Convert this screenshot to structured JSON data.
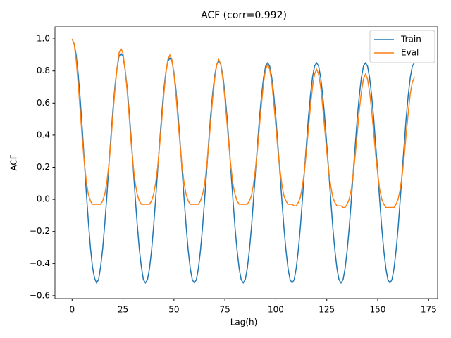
{
  "chart_data": {
    "type": "line",
    "title": "ACF  (corr=0.992)",
    "x_label": "Lag(h)",
    "y_label": "ACF",
    "x": [
      0,
      1,
      2,
      3,
      4,
      5,
      6,
      7,
      8,
      9,
      10,
      11,
      12,
      13,
      14,
      15,
      16,
      17,
      18,
      19,
      20,
      21,
      22,
      23,
      24,
      25,
      26,
      27,
      28,
      29,
      30,
      31,
      32,
      33,
      34,
      35,
      36,
      37,
      38,
      39,
      40,
      41,
      42,
      43,
      44,
      45,
      46,
      47,
      48,
      49,
      50,
      51,
      52,
      53,
      54,
      55,
      56,
      57,
      58,
      59,
      60,
      61,
      62,
      63,
      64,
      65,
      66,
      67,
      68,
      69,
      70,
      71,
      72,
      73,
      74,
      75,
      76,
      77,
      78,
      79,
      80,
      81,
      82,
      83,
      84,
      85,
      86,
      87,
      88,
      89,
      90,
      91,
      92,
      93,
      94,
      95,
      96,
      97,
      98,
      99,
      100,
      101,
      102,
      103,
      104,
      105,
      106,
      107,
      108,
      109,
      110,
      111,
      112,
      113,
      114,
      115,
      116,
      117,
      118,
      119,
      120,
      121,
      122,
      123,
      124,
      125,
      126,
      127,
      128,
      129,
      130,
      131,
      132,
      133,
      134,
      135,
      136,
      137,
      138,
      139,
      140,
      141,
      142,
      143,
      144,
      145,
      146,
      147,
      148,
      149,
      150,
      151,
      152,
      153,
      154,
      155,
      156,
      157,
      158,
      159,
      160,
      161,
      162,
      163,
      164,
      165,
      166,
      167,
      168
    ],
    "series": [
      {
        "name": "Train",
        "color": "#1f77b4",
        "values": [
          1.0,
          0.97,
          0.9,
          0.78,
          0.62,
          0.44,
          0.24,
          0.04,
          -0.14,
          -0.3,
          -0.42,
          -0.49,
          -0.52,
          -0.5,
          -0.42,
          -0.31,
          -0.16,
          0.01,
          0.2,
          0.38,
          0.55,
          0.7,
          0.81,
          0.89,
          0.91,
          0.89,
          0.81,
          0.7,
          0.55,
          0.38,
          0.2,
          0.01,
          -0.16,
          -0.31,
          -0.42,
          -0.5,
          -0.52,
          -0.5,
          -0.43,
          -0.32,
          -0.17,
          0.0,
          0.18,
          0.36,
          0.53,
          0.68,
          0.79,
          0.86,
          0.88,
          0.86,
          0.79,
          0.68,
          0.53,
          0.36,
          0.18,
          0.0,
          -0.17,
          -0.32,
          -0.43,
          -0.5,
          -0.52,
          -0.5,
          -0.43,
          -0.32,
          -0.18,
          -0.01,
          0.17,
          0.35,
          0.52,
          0.66,
          0.77,
          0.84,
          0.86,
          0.84,
          0.77,
          0.66,
          0.52,
          0.35,
          0.17,
          -0.01,
          -0.18,
          -0.32,
          -0.43,
          -0.5,
          -0.52,
          -0.5,
          -0.43,
          -0.32,
          -0.18,
          -0.01,
          0.17,
          0.34,
          0.51,
          0.65,
          0.76,
          0.83,
          0.85,
          0.83,
          0.76,
          0.65,
          0.51,
          0.34,
          0.17,
          -0.01,
          -0.18,
          -0.32,
          -0.43,
          -0.5,
          -0.52,
          -0.5,
          -0.43,
          -0.32,
          -0.18,
          -0.01,
          0.17,
          0.34,
          0.51,
          0.65,
          0.76,
          0.83,
          0.85,
          0.83,
          0.76,
          0.65,
          0.51,
          0.34,
          0.17,
          -0.01,
          -0.18,
          -0.32,
          -0.43,
          -0.5,
          -0.52,
          -0.5,
          -0.43,
          -0.32,
          -0.18,
          -0.01,
          0.17,
          0.34,
          0.51,
          0.65,
          0.76,
          0.83,
          0.85,
          0.83,
          0.76,
          0.65,
          0.51,
          0.34,
          0.17,
          -0.01,
          -0.18,
          -0.32,
          -0.43,
          -0.5,
          -0.52,
          -0.5,
          -0.43,
          -0.32,
          -0.18,
          -0.01,
          0.17,
          0.34,
          0.51,
          0.65,
          0.76,
          0.83,
          0.85
        ]
      },
      {
        "name": "Eval",
        "color": "#ff7f0e",
        "values": [
          1.0,
          0.97,
          0.87,
          0.72,
          0.55,
          0.38,
          0.23,
          0.11,
          0.03,
          -0.01,
          -0.03,
          -0.03,
          -0.03,
          -0.03,
          -0.03,
          -0.01,
          0.03,
          0.1,
          0.21,
          0.35,
          0.52,
          0.68,
          0.81,
          0.91,
          0.94,
          0.91,
          0.81,
          0.68,
          0.52,
          0.35,
          0.21,
          0.1,
          0.03,
          -0.01,
          -0.03,
          -0.03,
          -0.03,
          -0.03,
          -0.03,
          -0.01,
          0.03,
          0.1,
          0.2,
          0.34,
          0.49,
          0.65,
          0.78,
          0.87,
          0.9,
          0.87,
          0.78,
          0.65,
          0.49,
          0.34,
          0.2,
          0.1,
          0.03,
          -0.01,
          -0.03,
          -0.03,
          -0.03,
          -0.03,
          -0.03,
          -0.01,
          0.03,
          0.09,
          0.2,
          0.33,
          0.48,
          0.63,
          0.75,
          0.84,
          0.87,
          0.84,
          0.75,
          0.63,
          0.48,
          0.33,
          0.2,
          0.09,
          0.03,
          -0.01,
          -0.03,
          -0.03,
          -0.03,
          -0.03,
          -0.03,
          -0.01,
          0.02,
          0.09,
          0.19,
          0.31,
          0.46,
          0.6,
          0.73,
          0.81,
          0.84,
          0.81,
          0.73,
          0.6,
          0.46,
          0.31,
          0.19,
          0.09,
          0.02,
          -0.01,
          -0.03,
          -0.03,
          -0.03,
          -0.04,
          -0.04,
          -0.02,
          0.01,
          0.08,
          0.17,
          0.3,
          0.44,
          0.58,
          0.7,
          0.78,
          0.81,
          0.78,
          0.7,
          0.58,
          0.44,
          0.3,
          0.17,
          0.08,
          0.01,
          -0.02,
          -0.04,
          -0.04,
          -0.04,
          -0.05,
          -0.05,
          -0.03,
          0.0,
          0.06,
          0.16,
          0.28,
          0.42,
          0.56,
          0.67,
          0.75,
          0.78,
          0.75,
          0.67,
          0.56,
          0.42,
          0.28,
          0.16,
          0.06,
          0.0,
          -0.03,
          -0.05,
          -0.05,
          -0.05,
          -0.05,
          -0.05,
          -0.03,
          0.0,
          0.06,
          0.15,
          0.27,
          0.41,
          0.54,
          0.66,
          0.73,
          0.76
        ]
      }
    ],
    "xlim": [
      -8.4,
      179.4
    ],
    "xticks": [
      0,
      25,
      50,
      75,
      100,
      125,
      150,
      175
    ],
    "ylim": [
      -0.618,
      1.075
    ],
    "yticks": [
      {
        "value": -0.6,
        "label": "−0.6"
      },
      {
        "value": -0.4,
        "label": "−0.4"
      },
      {
        "value": -0.2,
        "label": "−0.2"
      },
      {
        "value": 0,
        "label": "0.0"
      },
      {
        "value": 0.2,
        "label": "0.2"
      },
      {
        "value": 0.4,
        "label": "0.4"
      },
      {
        "value": 0.6,
        "label": "0.6"
      },
      {
        "value": 0.8,
        "label": "0.8"
      },
      {
        "value": 1.0,
        "label": "1.0"
      }
    ],
    "grid": false,
    "legend_position": "upper right"
  }
}
